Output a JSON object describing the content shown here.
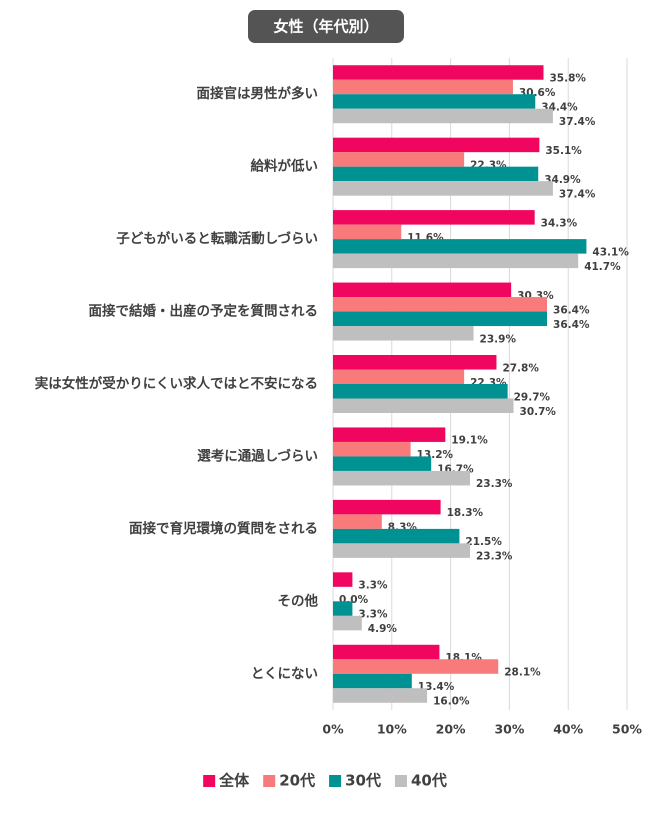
{
  "chart_data": {
    "type": "hbar",
    "title": "女性（年代別）",
    "categories": [
      "面接官は男性が多い",
      "給料が低い",
      "子どもがいると転職活動しづらい",
      "面接で結婚・出産の予定を質問される",
      "実は女性が受かりにくい求人ではと不安になる",
      "選考に通過しづらい",
      "面接で育児環境の質問をされる",
      "その他",
      "とくにない"
    ],
    "series": [
      {
        "name": "全体",
        "color": "#f0065f",
        "values": [
          35.8,
          35.1,
          34.3,
          30.3,
          27.8,
          19.1,
          18.3,
          3.3,
          18.1
        ],
        "value_labels": [
          "35.8%",
          "35.1%",
          "34.3%",
          "30.3%",
          "27.8%",
          "19.1%",
          "18.3%",
          "3.3%",
          "18.1%"
        ]
      },
      {
        "name": "20代",
        "color": "#f87a7a",
        "values": [
          30.6,
          22.3,
          11.6,
          36.4,
          22.3,
          13.2,
          8.3,
          0.0,
          28.1
        ],
        "value_labels": [
          "30.6%",
          "22.3%",
          "11.6%",
          "36.4%",
          "22.3%",
          "13.2%",
          "8.3%",
          "0.0%",
          "28.1%"
        ]
      },
      {
        "name": "30代",
        "color": "#009292",
        "values": [
          34.4,
          34.9,
          43.1,
          36.4,
          29.7,
          16.7,
          21.5,
          3.3,
          13.4
        ],
        "value_labels": [
          "34.4%",
          "34.9%",
          "43.1%",
          "36.4%",
          "29.7%",
          "16.7%",
          "21.5%",
          "3.3%",
          "13.4%"
        ]
      },
      {
        "name": "40代",
        "color": "#bfbfbf",
        "values": [
          37.4,
          37.4,
          41.7,
          23.9,
          30.7,
          23.3,
          23.3,
          4.9,
          16.0
        ],
        "value_labels": [
          "37.4%",
          "37.4%",
          "41.7%",
          "23.9%",
          "30.7%",
          "23.3%",
          "23.3%",
          "4.9%",
          "16.0%"
        ]
      }
    ],
    "xlim": [
      0,
      50
    ],
    "xticks": [
      {
        "value": 0,
        "label": "0%"
      },
      {
        "value": 10,
        "label": "10%"
      },
      {
        "value": 20,
        "label": "20%"
      },
      {
        "value": 30,
        "label": "30%"
      },
      {
        "value": 40,
        "label": "40%"
      },
      {
        "value": 50,
        "label": "50%"
      }
    ],
    "grid": true,
    "legend": "bottom"
  }
}
